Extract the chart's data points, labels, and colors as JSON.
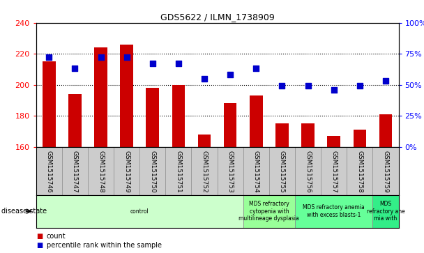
{
  "title": "GDS5622 / ILMN_1738909",
  "samples": [
    "GSM1515746",
    "GSM1515747",
    "GSM1515748",
    "GSM1515749",
    "GSM1515750",
    "GSM1515751",
    "GSM1515752",
    "GSM1515753",
    "GSM1515754",
    "GSM1515755",
    "GSM1515756",
    "GSM1515757",
    "GSM1515758",
    "GSM1515759"
  ],
  "counts": [
    215,
    194,
    224,
    226,
    198,
    200,
    168,
    188,
    193,
    175,
    175,
    167,
    171,
    181
  ],
  "percentile_ranks": [
    72,
    63,
    72,
    72,
    67,
    67,
    55,
    58,
    63,
    49,
    49,
    46,
    49,
    53
  ],
  "ylim_left": [
    160,
    240
  ],
  "ylim_right": [
    0,
    100
  ],
  "yticks_left": [
    160,
    180,
    200,
    220,
    240
  ],
  "yticks_right": [
    0,
    25,
    50,
    75,
    100
  ],
  "bar_color": "#cc0000",
  "dot_color": "#0000cc",
  "bar_width": 0.5,
  "dot_size": 28,
  "disease_states": [
    {
      "label": "control",
      "start": 0,
      "end": 8,
      "color": "#ccffcc"
    },
    {
      "label": "MDS refractory\ncytopenia with\nmultilineage dysplasia",
      "start": 8,
      "end": 10,
      "color": "#99ff99"
    },
    {
      "label": "MDS refractory anemia\nwith excess blasts-1",
      "start": 10,
      "end": 13,
      "color": "#66ff99"
    },
    {
      "label": "MDS\nrefractory ane\nmia with",
      "start": 13,
      "end": 14,
      "color": "#33ee88"
    }
  ],
  "disease_state_label": "disease state",
  "legend_count_label": "count",
  "legend_percentile_label": "percentile rank within the sample",
  "grid_color": "#000000",
  "tick_area_bg": "#cccccc"
}
